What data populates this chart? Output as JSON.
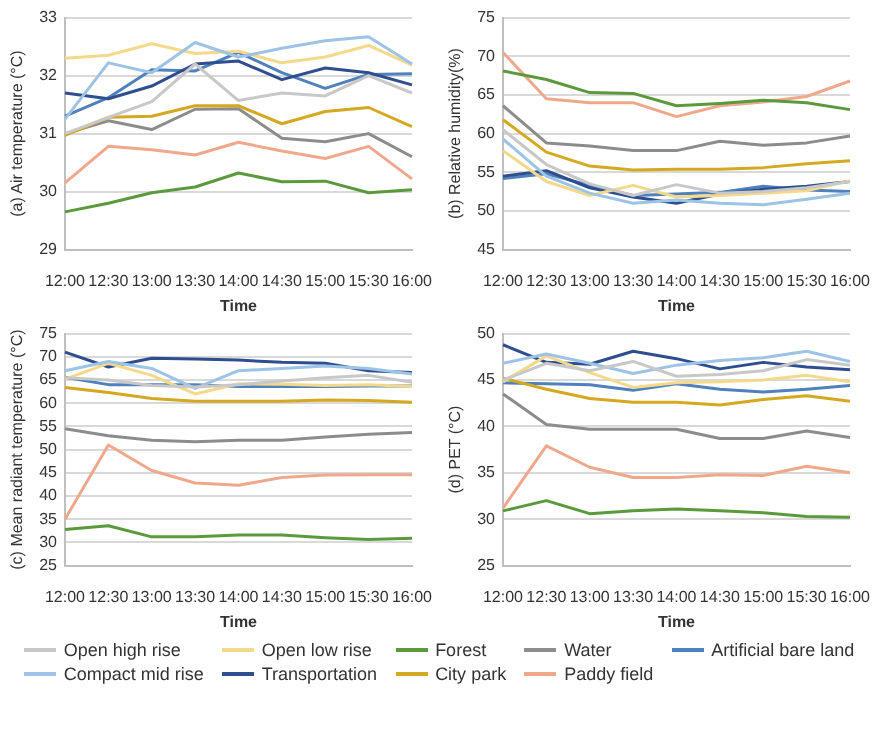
{
  "chart_data": [
    {
      "type": "line",
      "xlabel": "Time",
      "ylabel": "(a) Air temperature (°C)",
      "categories": [
        "12:00",
        "12:30",
        "13:00",
        "13:30",
        "14:00",
        "14:30",
        "15:00",
        "15:30",
        "16:00"
      ],
      "ylim": [
        29,
        33
      ],
      "yticks": [
        29,
        30,
        31,
        32,
        33
      ],
      "grid": "y",
      "marker": "none",
      "legend": "bottom",
      "series": [
        {
          "name": "Open high rise",
          "color": "#c8c8c8",
          "values": [
            31.0,
            31.28,
            31.55,
            32.2,
            31.57,
            31.7,
            31.65,
            32.0,
            31.7
          ]
        },
        {
          "name": "Compact mid rise",
          "color": "#9dc3e6",
          "values": [
            31.25,
            32.22,
            32.05,
            32.57,
            32.32,
            32.47,
            32.6,
            32.67,
            32.2
          ]
        },
        {
          "name": "Open low rise",
          "color": "#f5d98a",
          "values": [
            32.3,
            32.35,
            32.55,
            32.38,
            32.42,
            32.22,
            32.32,
            32.52,
            32.18
          ]
        },
        {
          "name": "Transportation",
          "color": "#2e4e8f",
          "values": [
            31.7,
            31.6,
            31.82,
            32.2,
            32.25,
            31.93,
            32.13,
            32.05,
            31.84
          ]
        },
        {
          "name": "Forest",
          "color": "#5a9a3c",
          "values": [
            29.65,
            29.8,
            29.98,
            30.08,
            30.32,
            30.17,
            30.18,
            29.98,
            30.03
          ]
        },
        {
          "name": "City park",
          "color": "#d4a820",
          "values": [
            30.97,
            31.28,
            31.3,
            31.48,
            31.48,
            31.17,
            31.38,
            31.45,
            31.12
          ]
        },
        {
          "name": "Water",
          "color": "#8c8c8c",
          "values": [
            31.0,
            31.22,
            31.07,
            31.42,
            31.43,
            30.92,
            30.86,
            31.0,
            30.6
          ]
        },
        {
          "name": "Paddy field",
          "color": "#f0a88c",
          "values": [
            30.15,
            30.78,
            30.72,
            30.63,
            30.85,
            30.7,
            30.57,
            30.78,
            30.22
          ]
        },
        {
          "name": "Artificial bare land",
          "color": "#4f81bd",
          "values": [
            31.3,
            31.62,
            32.1,
            32.08,
            32.4,
            32.05,
            31.78,
            32.02,
            32.03
          ]
        }
      ]
    },
    {
      "type": "line",
      "xlabel": "Time",
      "ylabel": "(b) Relative humidity(%)",
      "categories": [
        "12:00",
        "12:30",
        "13:00",
        "13:30",
        "14:00",
        "14:30",
        "15:00",
        "15:30",
        "16:00"
      ],
      "ylim": [
        45,
        75
      ],
      "yticks": [
        45,
        50,
        55,
        60,
        65,
        70,
        75
      ],
      "grid": "y",
      "marker": "none",
      "series": [
        {
          "color": "#c8c8c8",
          "values": [
            60.5,
            56.0,
            53.5,
            52.0,
            53.4,
            52.3,
            52.5,
            53.0,
            53.8
          ]
        },
        {
          "color": "#9dc3e6",
          "values": [
            59.3,
            54.5,
            52.3,
            51.0,
            51.4,
            51.0,
            50.8,
            51.5,
            52.3
          ]
        },
        {
          "color": "#f5d98a",
          "values": [
            57.8,
            53.8,
            52.0,
            53.3,
            51.8,
            52.0,
            52.3,
            52.6,
            53.9
          ]
        },
        {
          "color": "#2e4e8f",
          "values": [
            54.5,
            55.2,
            53.0,
            51.8,
            51.0,
            52.2,
            52.8,
            53.2,
            53.8
          ]
        },
        {
          "color": "#5a9a3c",
          "values": [
            68.1,
            67.0,
            65.3,
            65.2,
            63.6,
            63.9,
            64.3,
            64.0,
            63.1
          ]
        },
        {
          "color": "#d4a820",
          "values": [
            61.8,
            57.6,
            55.8,
            55.3,
            55.4,
            55.4,
            55.6,
            56.1,
            56.5
          ]
        },
        {
          "color": "#8c8c8c",
          "values": [
            63.6,
            58.8,
            58.4,
            57.8,
            57.8,
            59.0,
            58.5,
            58.8,
            59.7
          ]
        },
        {
          "color": "#f0a88c",
          "values": [
            70.5,
            64.5,
            64.0,
            64.0,
            62.2,
            63.6,
            64.1,
            64.8,
            66.8
          ]
        },
        {
          "color": "#4f81bd",
          "values": [
            54.2,
            54.8,
            53.3,
            52.0,
            52.2,
            52.4,
            53.2,
            52.7,
            52.5
          ]
        }
      ]
    },
    {
      "type": "line",
      "xlabel": "Time",
      "ylabel": "(c) Mean radiant temperature (°C)",
      "categories": [
        "12:00",
        "12:30",
        "13:00",
        "13:30",
        "14:00",
        "14:30",
        "15:00",
        "15:30",
        "16:00"
      ],
      "ylim": [
        25,
        75
      ],
      "yticks": [
        25,
        30,
        35,
        40,
        45,
        50,
        55,
        60,
        65,
        70,
        75
      ],
      "grid": "y",
      "marker": "none",
      "series": [
        {
          "color": "#c8c8c8",
          "values": [
            65.5,
            65.0,
            63.8,
            63.5,
            64.0,
            64.8,
            65.5,
            66.0,
            64.5
          ]
        },
        {
          "color": "#9dc3e6",
          "values": [
            67.0,
            69.0,
            67.5,
            63.2,
            67.0,
            67.5,
            68.0,
            67.5,
            66.3
          ]
        },
        {
          "color": "#f5d98a",
          "values": [
            65.2,
            68.6,
            66.0,
            62.0,
            64.2,
            64.1,
            63.8,
            64.0,
            63.6
          ]
        },
        {
          "color": "#2e4e8f",
          "values": [
            71.0,
            67.8,
            69.7,
            69.5,
            69.3,
            68.8,
            68.6,
            67.0,
            66.6
          ]
        },
        {
          "color": "#5a9a3c",
          "values": [
            32.8,
            33.6,
            31.2,
            31.2,
            31.6,
            31.6,
            31.0,
            30.6,
            30.9
          ]
        },
        {
          "color": "#d4a820",
          "values": [
            63.4,
            62.3,
            61.0,
            60.4,
            60.4,
            60.4,
            60.7,
            60.6,
            60.2
          ]
        },
        {
          "color": "#8c8c8c",
          "values": [
            54.5,
            53.0,
            52.0,
            51.7,
            52.0,
            52.0,
            52.7,
            53.3,
            53.7
          ]
        },
        {
          "color": "#f0a88c",
          "values": [
            35.0,
            51.0,
            45.5,
            42.8,
            42.3,
            44.0,
            44.5,
            44.6,
            44.6
          ]
        },
        {
          "color": "#4f81bd",
          "values": [
            65.6,
            64.0,
            64.0,
            64.0,
            63.6,
            63.6,
            63.6,
            63.7,
            63.7
          ]
        }
      ]
    },
    {
      "type": "line",
      "xlabel": "Time",
      "ylabel": "(d) PET (°C)",
      "categories": [
        "12:00",
        "12:30",
        "13:00",
        "13:30",
        "14:00",
        "14:30",
        "15:00",
        "15:30",
        "16:00"
      ],
      "ylim": [
        25,
        50
      ],
      "yticks": [
        25,
        30,
        35,
        40,
        45,
        50
      ],
      "grid": "y",
      "marker": "none",
      "series": [
        {
          "color": "#c8c8c8",
          "values": [
            45.0,
            46.8,
            46.0,
            47.0,
            45.4,
            45.6,
            46.0,
            47.2,
            46.6
          ]
        },
        {
          "color": "#9dc3e6",
          "values": [
            46.8,
            47.8,
            46.8,
            45.7,
            46.6,
            47.1,
            47.4,
            48.1,
            47.0
          ]
        },
        {
          "color": "#f5d98a",
          "values": [
            44.8,
            47.6,
            45.8,
            44.2,
            44.7,
            44.8,
            45.0,
            45.5,
            44.8
          ]
        },
        {
          "color": "#2e4e8f",
          "values": [
            48.8,
            46.9,
            46.7,
            48.1,
            47.3,
            46.2,
            46.9,
            46.4,
            46.1
          ]
        },
        {
          "color": "#5a9a3c",
          "values": [
            30.9,
            32.0,
            30.6,
            30.9,
            31.1,
            30.9,
            30.7,
            30.3,
            30.2
          ]
        },
        {
          "color": "#d4a820",
          "values": [
            45.2,
            44.0,
            43.0,
            42.6,
            42.6,
            42.3,
            42.9,
            43.3,
            42.7
          ]
        },
        {
          "color": "#8c8c8c",
          "values": [
            43.5,
            40.2,
            39.7,
            39.7,
            39.7,
            38.7,
            38.7,
            39.5,
            38.8
          ]
        },
        {
          "color": "#f0a88c",
          "values": [
            31.2,
            37.9,
            35.6,
            34.5,
            34.5,
            34.8,
            34.7,
            35.7,
            35.0
          ]
        },
        {
          "color": "#4f81bd",
          "values": [
            44.7,
            44.6,
            44.5,
            43.9,
            44.6,
            44.0,
            43.7,
            44.0,
            44.4
          ]
        }
      ]
    }
  ]
}
